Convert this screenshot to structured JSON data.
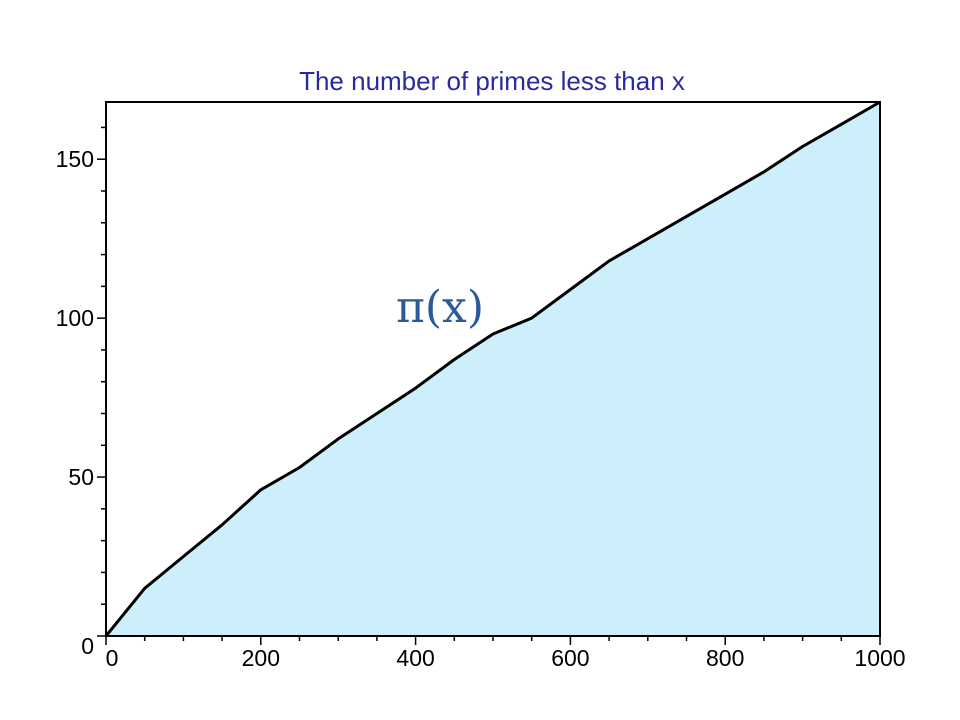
{
  "chart_data": {
    "type": "area",
    "title": "The number of primes less than x",
    "annotation": "π(x)",
    "xlabel": "",
    "ylabel": "",
    "xlim": [
      0,
      1000
    ],
    "ylim": [
      0,
      168
    ],
    "x_ticks": [
      0,
      200,
      400,
      600,
      800,
      1000
    ],
    "y_ticks": [
      0,
      50,
      100,
      150
    ],
    "x_tick_labels": [
      "0",
      "200",
      "400",
      "600",
      "800",
      "1000"
    ],
    "y_tick_labels": [
      "0",
      "50",
      "100",
      "150"
    ],
    "grid": false,
    "series": [
      {
        "values_description": "step function pi(x)",
        "x": [
          0,
          50,
          100,
          150,
          200,
          250,
          300,
          350,
          400,
          450,
          500,
          550,
          600,
          650,
          700,
          750,
          800,
          850,
          900,
          950,
          1000
        ],
        "y": [
          0,
          15,
          25,
          35,
          46,
          53,
          62,
          70,
          78,
          87,
          95,
          100,
          109,
          118,
          125,
          132,
          139,
          146,
          154,
          161,
          168
        ]
      }
    ],
    "colors": {
      "fill": "#cdeefb",
      "line": "#000000",
      "title": "#2a2aa0",
      "annotation": "#2b5a9c"
    }
  }
}
